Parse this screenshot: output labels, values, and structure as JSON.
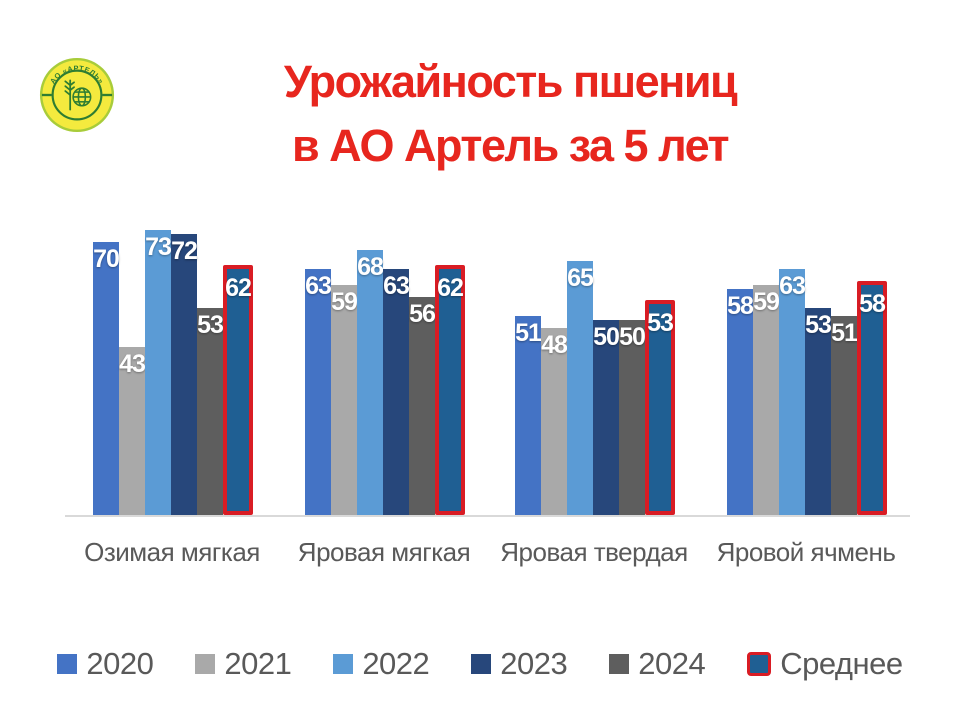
{
  "title": {
    "line1": "Урожайность пшениц",
    "line2": "в АО Артель за 5 лет",
    "color": "#E7261E"
  },
  "logo": {
    "text": "АО «АРТЕЛЬ»",
    "ring_color": "#2E7D32",
    "fill_color": "#F4EA3E",
    "outer_color": "#A8CC3A"
  },
  "chart_data": {
    "type": "bar",
    "title": "Урожайность пшениц в АО Артель за 5 лет",
    "categories": [
      "Озимая мягкая",
      "Яровая мягкая",
      "Яровая твердая",
      "Яровой ячмень"
    ],
    "series": [
      {
        "name": "2020",
        "color": "#4473C5",
        "values": [
          70,
          63,
          51,
          58
        ]
      },
      {
        "name": "2021",
        "color": "#A9A9A9",
        "values": [
          43,
          59,
          48,
          59
        ]
      },
      {
        "name": "2022",
        "color": "#5B9BD5",
        "values": [
          73,
          68,
          65,
          63
        ]
      },
      {
        "name": "2023",
        "color": "#27477B",
        "values": [
          72,
          63,
          50,
          53
        ]
      },
      {
        "name": "2024",
        "color": "#5E5E5E",
        "values": [
          53,
          56,
          50,
          51
        ]
      },
      {
        "name": "Среднее",
        "color": "#1F5F93",
        "border_color": "#D91C24",
        "values": [
          62,
          62,
          53,
          58
        ]
      }
    ],
    "ylim": [
      0,
      75
    ],
    "grid": false,
    "axis_line_color": "#D9D9D9",
    "value_labels": true,
    "value_label_color": "#FFFFFF",
    "category_label_color": "#595959",
    "legend_position": "bottom"
  }
}
